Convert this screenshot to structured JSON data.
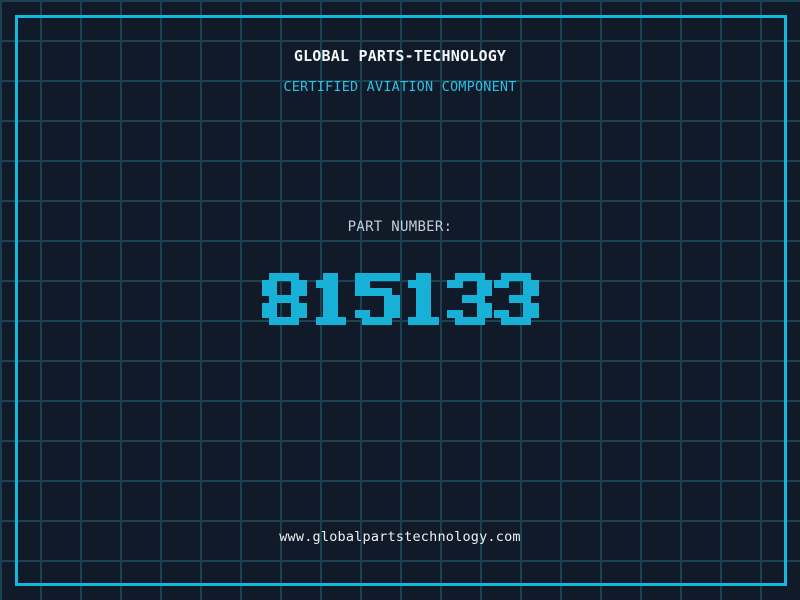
{
  "header": {
    "company": "GLOBAL PARTS-TECHNOLOGY",
    "certification": "CERTIFIED AVIATION COMPONENT"
  },
  "part": {
    "label": "PART NUMBER:",
    "number": "815133"
  },
  "footer": {
    "website": "www.globalpartstechnology.com"
  },
  "colors": {
    "background": "#101a29",
    "grid_line": "#194253",
    "frame": "#14b7de",
    "digits": "#17b0d6",
    "title": "#f3f5f7",
    "subtitle": "#2fbfe5",
    "label": "#c6cdd6",
    "footer": "#eef1f3"
  }
}
